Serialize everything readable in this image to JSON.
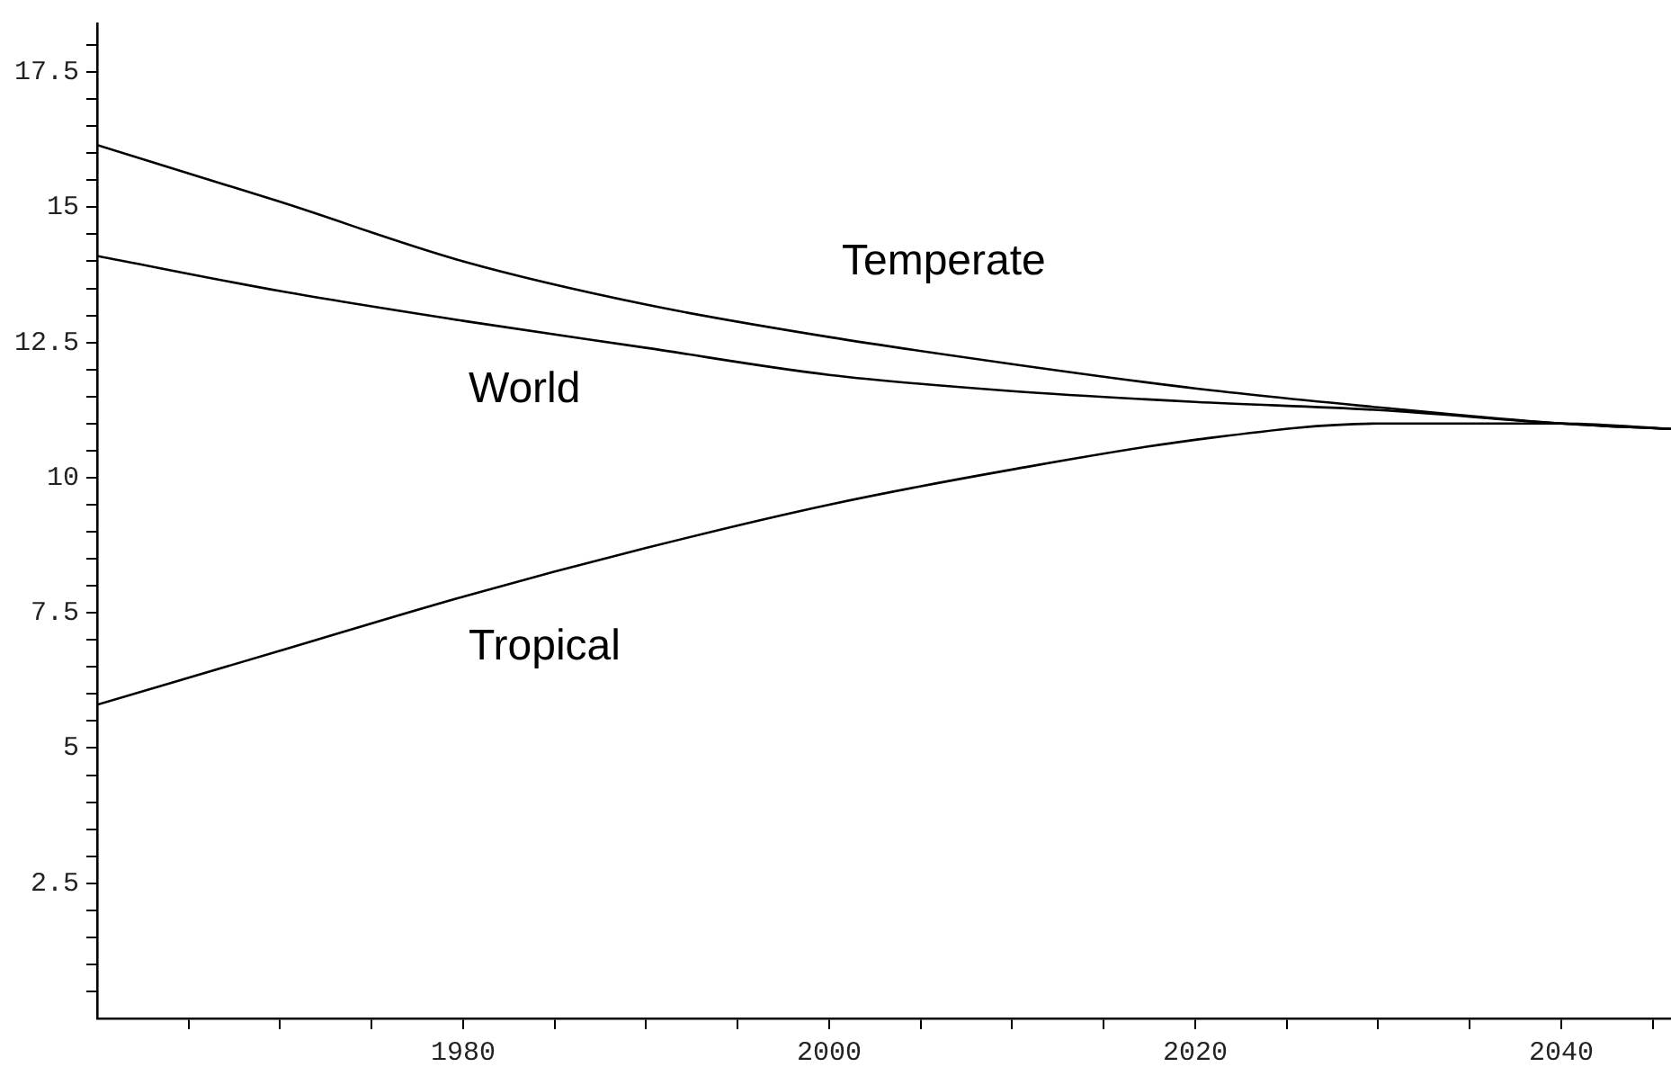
{
  "chart_data": {
    "type": "line",
    "x": [
      1960,
      1970,
      1980,
      1990,
      2000,
      2010,
      2020,
      2030,
      2040,
      2046
    ],
    "series": [
      {
        "name": "Temperate",
        "color": "#000000",
        "values": [
          16.15,
          15.1,
          14.0,
          13.2,
          12.6,
          12.1,
          11.65,
          11.3,
          11.0,
          10.9
        ]
      },
      {
        "name": "World",
        "color": "#000000",
        "values": [
          14.1,
          13.45,
          12.9,
          12.4,
          11.9,
          11.6,
          11.4,
          11.25,
          11.0,
          10.9
        ]
      },
      {
        "name": "Tropical",
        "color": "#000000",
        "values": [
          5.8,
          6.8,
          7.8,
          8.7,
          9.5,
          10.15,
          10.7,
          11.0,
          11.0,
          10.9
        ]
      }
    ],
    "xlim": [
      1960,
      2046
    ],
    "xticks": [
      {
        "value": 1965,
        "label": null
      },
      {
        "value": 1970,
        "label": null
      },
      {
        "value": 1975,
        "label": null
      },
      1980,
      {
        "value": 1985,
        "label": null
      },
      {
        "value": 1990,
        "label": null
      },
      {
        "value": 1995,
        "label": null
      },
      2000,
      {
        "value": 2005,
        "label": null
      },
      {
        "value": 2010,
        "label": null
      },
      {
        "value": 2015,
        "label": null
      },
      2020,
      {
        "value": 2025,
        "label": null
      },
      {
        "value": 2030,
        "label": null
      },
      {
        "value": 2035,
        "label": null
      },
      2040,
      {
        "value": 2045,
        "label": null
      }
    ],
    "ylim": [
      0,
      18.4
    ],
    "yticks": [
      {
        "value": 0.5,
        "label": null
      },
      {
        "value": 1,
        "label": null
      },
      {
        "value": 1.5,
        "label": null
      },
      {
        "value": 2,
        "label": null
      },
      2.5,
      {
        "value": 3,
        "label": null
      },
      {
        "value": 3.5,
        "label": null
      },
      {
        "value": 4,
        "label": null
      },
      {
        "value": 4.5,
        "label": null
      },
      5,
      {
        "value": 5.5,
        "label": null
      },
      {
        "value": 6,
        "label": null
      },
      {
        "value": 6.5,
        "label": null
      },
      {
        "value": 7,
        "label": null
      },
      7.5,
      {
        "value": 8,
        "label": null
      },
      {
        "value": 8.5,
        "label": null
      },
      {
        "value": 9,
        "label": null
      },
      {
        "value": 9.5,
        "label": null
      },
      10,
      {
        "value": 10.5,
        "label": null
      },
      {
        "value": 11,
        "label": null
      },
      {
        "value": 11.5,
        "label": null
      },
      {
        "value": 12,
        "label": null
      },
      12.5,
      {
        "value": 13,
        "label": null
      },
      {
        "value": 13.5,
        "label": null
      },
      {
        "value": 14,
        "label": null
      },
      {
        "value": 14.5,
        "label": null
      },
      15,
      {
        "value": 15.5,
        "label": null
      },
      {
        "value": 16,
        "label": null
      },
      {
        "value": 16.5,
        "label": null
      },
      {
        "value": 17,
        "label": null
      },
      17.5,
      {
        "value": 18,
        "label": null
      }
    ],
    "grid": false,
    "legend": false,
    "marker": "none",
    "line_style": "solid"
  }
}
